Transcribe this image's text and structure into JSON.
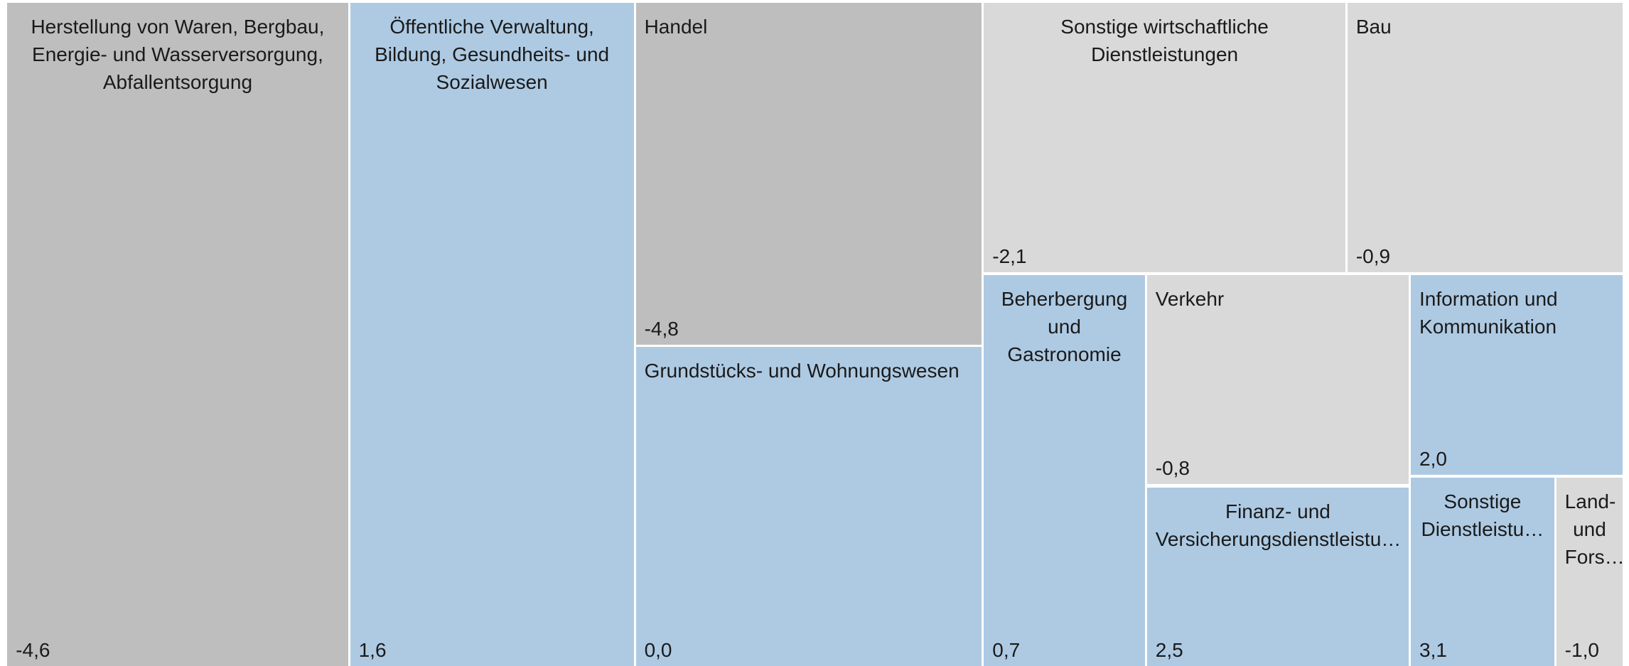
{
  "chart_data": {
    "type": "treemap",
    "categories": [
      "Herstellung von Waren, Bergbau, Energie- und Wasserversorgung, Abfallentsorgung",
      "Öffentliche Verwaltung, Bildung, Gesundheits- und Sozialwesen",
      "Handel",
      "Grundstücks- und Wohnungswesen",
      "Sonstige wirtschaftliche Dienstleistungen",
      "Bau",
      "Beherbergung und Gastronomie",
      "Verkehr",
      "Finanz- und Versicherungsdienstleistu…",
      "Information und Kommunikation",
      "Sonstige Dienstleistu…",
      "Land- und Fors…"
    ],
    "values": [
      -4.6,
      1.6,
      -4.8,
      0.0,
      -2.1,
      -0.9,
      0.7,
      -0.8,
      2.5,
      2.0,
      3.1,
      -1.0
    ],
    "value_labels": [
      "-4,6",
      "1,6",
      "-4,8",
      "0,0",
      "-2,1",
      "-0,9",
      "0,7",
      "-0,8",
      "2,5",
      "2,0",
      "3,1",
      "-1,0"
    ],
    "colors": [
      "#bebebe",
      "#aecae3",
      "#bebebe",
      "#aecae3",
      "#d9d9d9",
      "#d9d9d9",
      "#aecae3",
      "#d9d9d9",
      "#aecae3",
      "#aecae3",
      "#aecae3",
      "#d9d9d9"
    ]
  }
}
